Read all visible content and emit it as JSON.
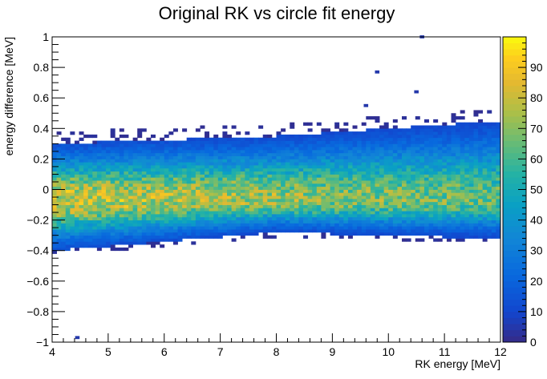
{
  "chart_data": {
    "type": "heatmap",
    "title": "Original RK vs circle fit energy",
    "xlabel": "RK energy [MeV]",
    "ylabel": "energy difference [MeV]",
    "xlim": [
      4,
      12
    ],
    "ylim": [
      -1,
      1
    ],
    "zlim": [
      0,
      100
    ],
    "x_ticks": [
      "4",
      "5",
      "6",
      "7",
      "8",
      "9",
      "10",
      "11",
      "12"
    ],
    "y_ticks": [
      "−1",
      "−0.8",
      "−0.6",
      "−0.4",
      "−0.2",
      "0",
      "0.2",
      "0.4",
      "0.6",
      "0.8",
      "1"
    ],
    "z_ticks": [
      "0",
      "10",
      "20",
      "30",
      "40",
      "50",
      "60",
      "70",
      "80",
      "90"
    ],
    "colormap": "parula",
    "x_bins": 100,
    "y_bins": 100,
    "band": {
      "center": [
        [
          4,
          -0.07
        ],
        [
          8,
          -0.06
        ],
        [
          12,
          -0.07
        ]
      ],
      "upper_edge": [
        [
          4,
          0.3
        ],
        [
          8,
          0.35
        ],
        [
          12,
          0.45
        ]
      ],
      "lower_edge": [
        [
          4,
          -0.4
        ],
        [
          8,
          -0.28
        ],
        [
          12,
          -0.32
        ]
      ]
    },
    "outliers": [
      [
        10.6,
        1.0
      ],
      [
        9.8,
        0.77
      ],
      [
        10.5,
        0.64
      ],
      [
        9.6,
        0.55
      ],
      [
        4.45,
        -0.97
      ]
    ]
  }
}
